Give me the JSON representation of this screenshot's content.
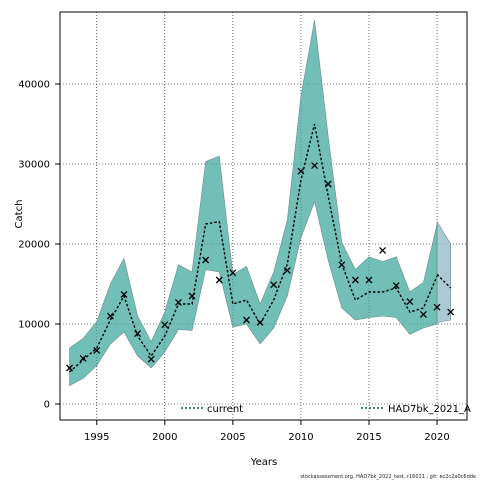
{
  "chart_data": {
    "type": "line",
    "xlabel": "Years",
    "ylabel": "Catch",
    "xlim": [
      1992.3,
      2022.2
    ],
    "ylim": [
      -2000,
      49000
    ],
    "x_ticks": [
      1995,
      2000,
      2005,
      2010,
      2015,
      2020
    ],
    "y_ticks": [
      0,
      10000,
      20000,
      30000,
      40000
    ],
    "grid": true,
    "legend_placement": "bottom",
    "colors": {
      "current_band": "#8fb8c8",
      "hist_band": "#3aa69a",
      "line": "#000000",
      "hist_line": "#0b5a52"
    },
    "series": [
      {
        "name": "current",
        "years": [
          2020,
          2021
        ],
        "median": [
          16200,
          14500
        ],
        "lower": [
          10200,
          10500
        ],
        "upper": [
          22800,
          20000
        ]
      },
      {
        "name": "HAD7bk_2021_A",
        "years": [
          1993,
          1994,
          1995,
          1996,
          1997,
          1998,
          1999,
          2000,
          2001,
          2002,
          2003,
          2004,
          2005,
          2006,
          2007,
          2008,
          2009,
          2010,
          2011,
          2012,
          2013,
          2014,
          2015,
          2016,
          2017,
          2018,
          2019,
          2020
        ],
        "median": [
          4000,
          5500,
          7000,
          10500,
          13500,
          8500,
          6000,
          8500,
          12500,
          12500,
          22500,
          22800,
          12500,
          13000,
          10000,
          13000,
          17500,
          28000,
          35000,
          26000,
          17500,
          13000,
          14000,
          14000,
          14500,
          11500,
          12000,
          16000
        ],
        "lower": [
          2300,
          3200,
          4800,
          7500,
          9000,
          6000,
          4500,
          6500,
          9300,
          9200,
          16800,
          16500,
          9600,
          10000,
          7500,
          9500,
          13500,
          20800,
          25300,
          18000,
          12000,
          10500,
          10800,
          11000,
          10800,
          8700,
          9500,
          10000
        ],
        "upper": [
          7000,
          8200,
          10300,
          15000,
          18200,
          11000,
          7800,
          11500,
          17400,
          16500,
          30300,
          31000,
          16200,
          17200,
          12500,
          16500,
          23000,
          38500,
          48000,
          33500,
          20200,
          16800,
          18400,
          17800,
          18400,
          14000,
          15200,
          22500
        ]
      }
    ],
    "observed_points": {
      "x": [
        1993,
        1994,
        1995,
        1996,
        1997,
        1998,
        1999,
        2000,
        2001,
        2002,
        2003,
        2004,
        2005,
        2006,
        2007,
        2008,
        2009,
        2010,
        2011,
        2012,
        2013,
        2014,
        2015,
        2016,
        2017,
        2018,
        2019,
        2020,
        2021
      ],
      "y": [
        4500,
        5700,
        6700,
        11000,
        13700,
        8800,
        5600,
        9900,
        12700,
        13500,
        18000,
        15500,
        16400,
        10500,
        10200,
        14900,
        16700,
        29100,
        29800,
        27500,
        17400,
        15500,
        15500,
        19200,
        14800,
        12800,
        11200,
        12100,
        11500
      ]
    }
  },
  "footer_text": "stockassessment.org, HAD7bk_2022_test, r16011 , git: ec2c2a0c6dde"
}
